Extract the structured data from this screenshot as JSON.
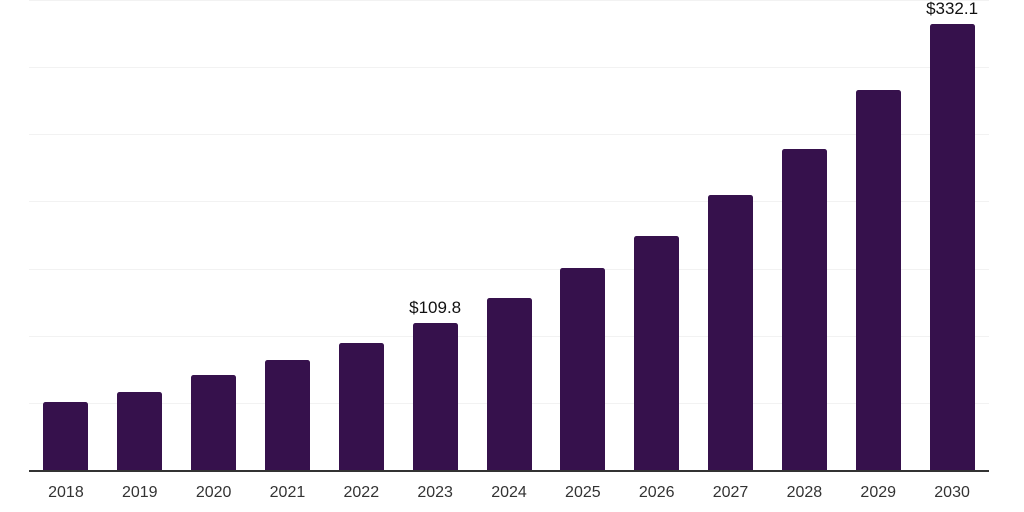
{
  "chart_data": {
    "type": "bar",
    "title": "",
    "xlabel": "",
    "ylabel": "",
    "categories": [
      "2018",
      "2019",
      "2020",
      "2021",
      "2022",
      "2023",
      "2024",
      "2025",
      "2026",
      "2027",
      "2028",
      "2029",
      "2030"
    ],
    "values": [
      50.8,
      57.9,
      70.7,
      81.7,
      94.8,
      109.8,
      128.1,
      150.2,
      174.5,
      204.8,
      239.4,
      282.8,
      332.1
    ],
    "point_labels": [
      "",
      "",
      "",
      "",
      "",
      "$109.8",
      "",
      "",
      "",
      "",
      "",
      "",
      "$332.1"
    ],
    "ylim": [
      0,
      350
    ],
    "gridline_step": 50,
    "grid": "horizontal",
    "legend": "none",
    "colors": {
      "bar": "#36114C",
      "gridline": "#f2f2f2",
      "axis_line": "#333333",
      "tick_label": "#333333",
      "data_label": "#111111",
      "background": "#ffffff"
    }
  }
}
